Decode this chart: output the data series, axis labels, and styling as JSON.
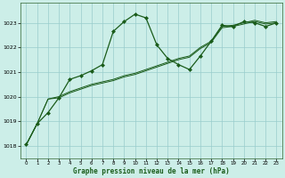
{
  "title": "Graphe pression niveau de la mer (hPa)",
  "bg_color": "#cceee8",
  "plot_bg_color": "#cceee8",
  "grid_color": "#99cccc",
  "line_color": "#1a5c1a",
  "marker_color": "#1a5c1a",
  "xlim": [
    -0.5,
    23.5
  ],
  "ylim": [
    1017.5,
    1023.8
  ],
  "xticks": [
    0,
    1,
    2,
    3,
    4,
    5,
    6,
    7,
    8,
    9,
    10,
    11,
    12,
    13,
    14,
    15,
    16,
    17,
    18,
    19,
    20,
    21,
    22,
    23
  ],
  "yticks": [
    1018,
    1019,
    1020,
    1021,
    1022,
    1023
  ],
  "series1_x": [
    0,
    1,
    2,
    3,
    4,
    5,
    6,
    7,
    8,
    9,
    10,
    11,
    12,
    13,
    14,
    15,
    16,
    17,
    18,
    19,
    20,
    21,
    22,
    23
  ],
  "series1_y": [
    1018.05,
    1018.9,
    1019.35,
    1019.95,
    1020.7,
    1020.85,
    1021.05,
    1021.3,
    1022.65,
    1023.05,
    1023.35,
    1023.2,
    1022.1,
    1021.55,
    1021.3,
    1021.1,
    1021.65,
    1022.25,
    1022.9,
    1022.85,
    1023.05,
    1023.0,
    1022.85,
    1023.0
  ],
  "series2_x": [
    0,
    1,
    2,
    3,
    4,
    5,
    6,
    7,
    8,
    9,
    10,
    11,
    12,
    13,
    14,
    15,
    16,
    17,
    18,
    19,
    20,
    21,
    22,
    23
  ],
  "series2_y": [
    1018.05,
    1018.9,
    1019.9,
    1019.95,
    1020.15,
    1020.3,
    1020.45,
    1020.55,
    1020.65,
    1020.8,
    1020.9,
    1021.05,
    1021.2,
    1021.35,
    1021.5,
    1021.6,
    1021.95,
    1022.2,
    1022.8,
    1022.85,
    1022.95,
    1023.05,
    1022.95,
    1023.0
  ],
  "series3_x": [
    0,
    1,
    2,
    3,
    4,
    5,
    6,
    7,
    8,
    9,
    10,
    11,
    12,
    13,
    14,
    15,
    16,
    17,
    18,
    19,
    20,
    21,
    22,
    23
  ],
  "series3_y": [
    1018.05,
    1018.9,
    1019.9,
    1020.0,
    1020.2,
    1020.35,
    1020.5,
    1020.6,
    1020.7,
    1020.85,
    1020.95,
    1021.1,
    1021.25,
    1021.4,
    1021.55,
    1021.65,
    1022.0,
    1022.25,
    1022.85,
    1022.9,
    1023.0,
    1023.1,
    1023.0,
    1023.05
  ]
}
